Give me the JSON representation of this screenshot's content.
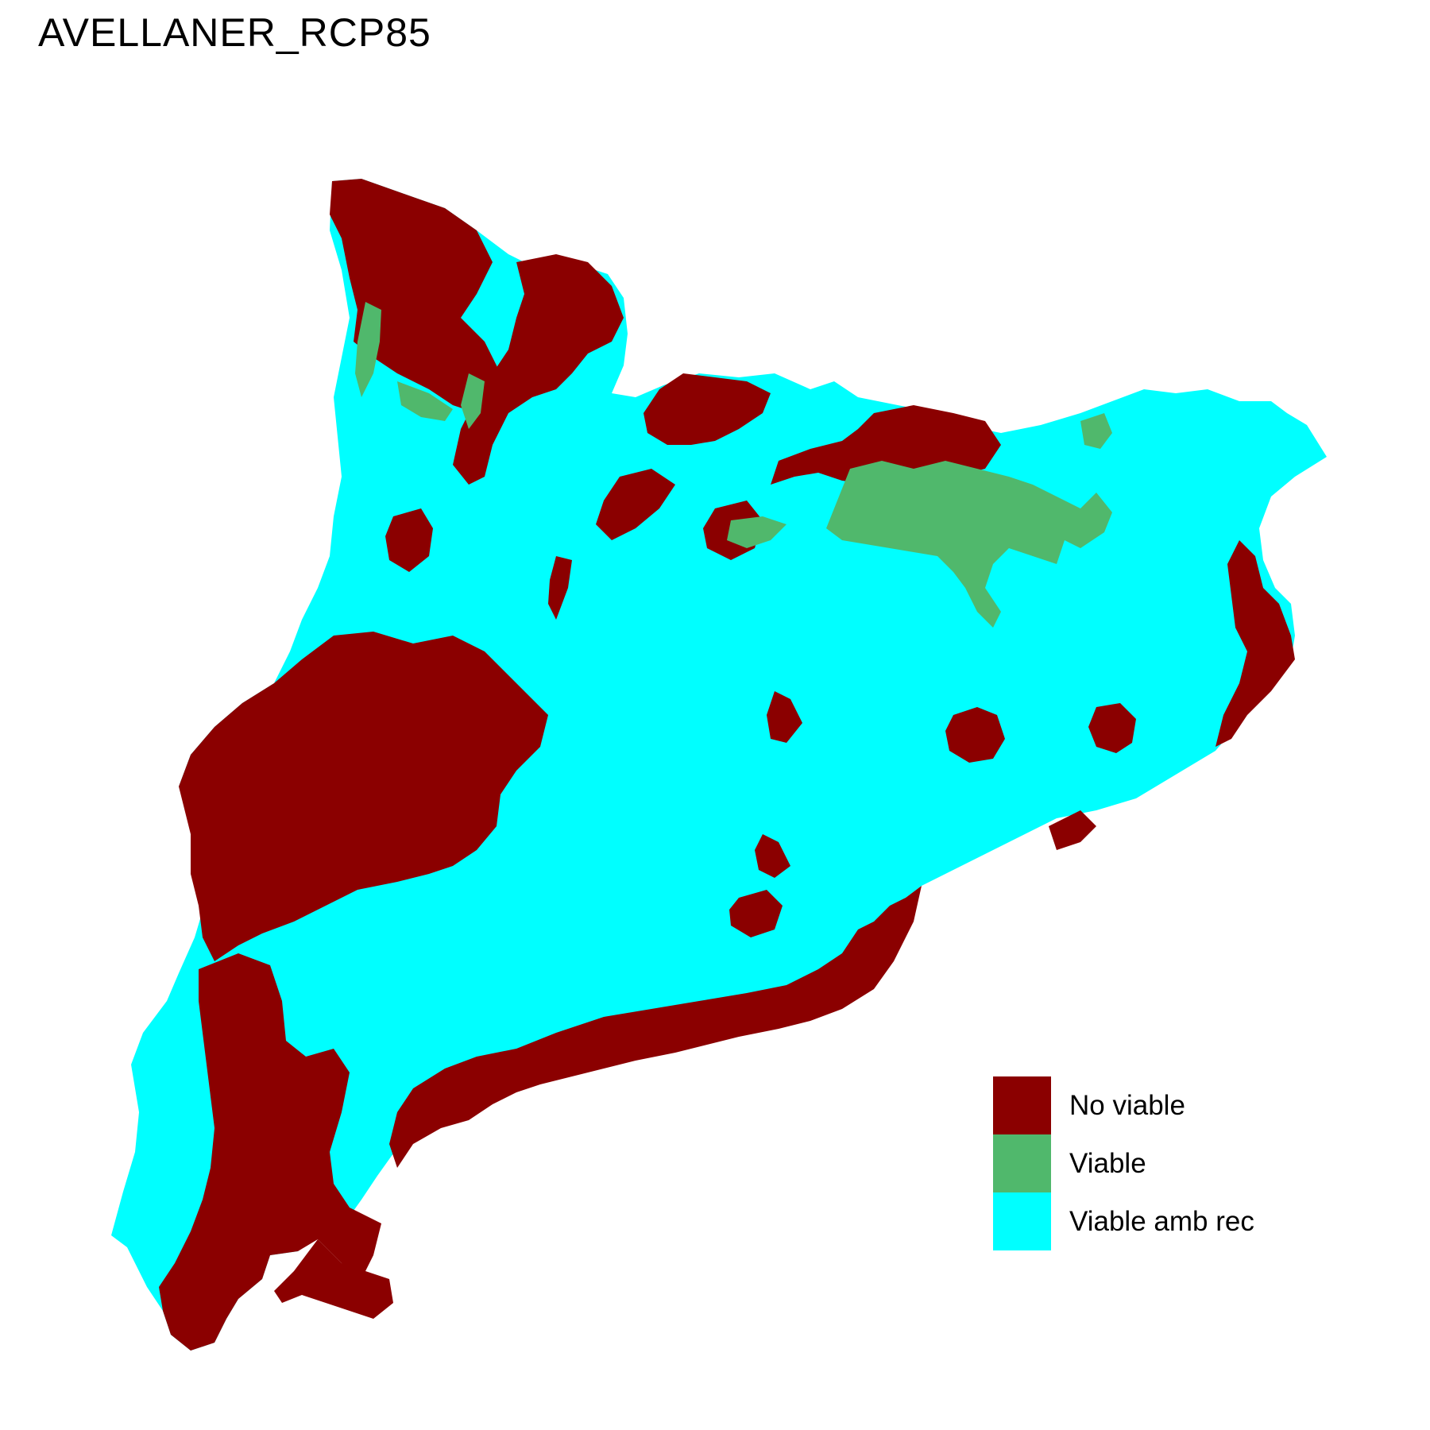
{
  "title": "AVELLANER_RCP85",
  "colors": {
    "no_viable": "#8B0000",
    "viable": "#50B86C",
    "viable_amb_rec": "#00FFFF"
  },
  "legend": [
    {
      "label": "No viable",
      "color": "#8B0000"
    },
    {
      "label": "Viable",
      "color": "#50B86C"
    },
    {
      "label": "Viable amb rec",
      "color": "#00FFFF"
    }
  ]
}
